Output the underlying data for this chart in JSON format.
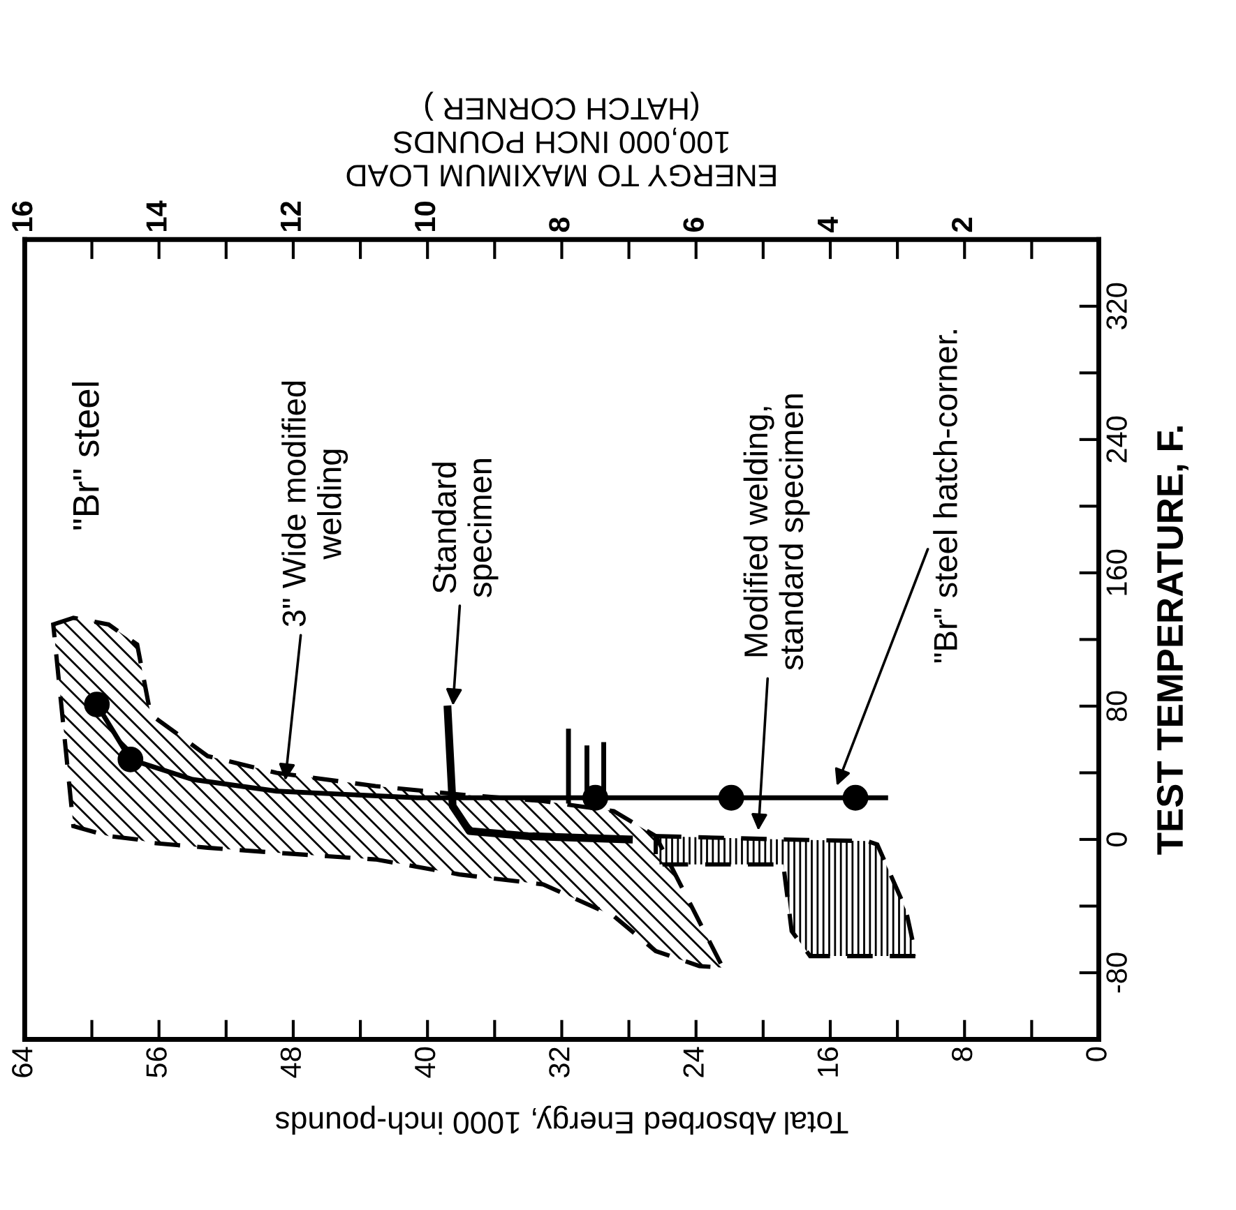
{
  "chart_data": {
    "type": "line",
    "xlabel": "Total Absorbed Energy, 1000 inch-pounds",
    "ylabel": "TEST TEMPERATURE, F.",
    "x2label": "ENERGY TO MAXIMUM LOAD\n100,000 INCH POUNDS\n(HATCH CORNER )",
    "xlim": [
      64,
      0
    ],
    "xticks": [
      64,
      {
        "value": 60,
        "label": null
      },
      56,
      {
        "value": 52,
        "label": null
      },
      48,
      {
        "value": 44,
        "label": null
      },
      40,
      {
        "value": 36,
        "label": null
      },
      32,
      {
        "value": 28,
        "label": null
      },
      24,
      {
        "value": 20,
        "label": null
      },
      16,
      {
        "value": 12,
        "label": null
      },
      8,
      {
        "value": 4,
        "label": null
      },
      0
    ],
    "x2lim": [
      16,
      0
    ],
    "x2ticks": [
      16,
      {
        "value": 15,
        "label": null
      },
      14,
      {
        "value": 13,
        "label": null
      },
      12,
      {
        "value": 11,
        "label": null
      },
      10,
      {
        "value": 9,
        "label": null
      },
      8,
      {
        "value": 7,
        "label": null
      },
      6,
      {
        "value": 5,
        "label": null
      },
      4,
      {
        "value": 3,
        "label": null
      },
      2,
      {
        "value": 1,
        "label": null
      }
    ],
    "ylim": [
      -120,
      360
    ],
    "yticks": [
      -80,
      {
        "value": -40,
        "label": null
      },
      0,
      {
        "value": 40,
        "label": null
      },
      80,
      {
        "value": 120,
        "label": null
      },
      160,
      {
        "value": 200,
        "label": null
      },
      240,
      {
        "value": 280,
        "label": null
      },
      320
    ],
    "grid": false,
    "legend": false,
    "series": [
      {
        "type": "area",
        "color": "#000000",
        "line_style": "dashed",
        "x": [
          62.3,
          61.1,
          59.0,
          57.3,
          56.5,
          53.1,
          49.0,
          43.1,
          38.1,
          33.1,
          28.9,
          26.4,
          22.4,
          23.8,
          26.4,
          28.9,
          33.1,
          38.1,
          43.1,
          49.0,
          53.1,
          56.5,
          57.3,
          59.0,
          61.1
        ],
        "values": [
          129,
          133,
          129,
          117,
          75,
          50,
          40,
          32,
          27,
          23,
          17,
          2,
          -77,
          -76,
          -67,
          -46,
          -27,
          -21,
          -12,
          -8,
          -5,
          -2,
          0,
          2,
          8
        ]
      },
      {
        "type": "area",
        "color": "#000000",
        "line_style": "dashed",
        "x": [
          26.4,
          18.8,
          13.8,
          13.2,
          11.5,
          10.9,
          17.2,
          18.3,
          18.8,
          26.4
        ],
        "values": [
          2,
          0,
          -1,
          -3,
          -42,
          -70,
          -70,
          -55,
          -15,
          -15
        ]
      },
      {
        "color": "#000000",
        "line_style": "solid",
        "x": [
          38.8,
          38.5,
          37.5,
          34.0,
          28.0
        ],
        "values": [
          78,
          20,
          5,
          2,
          0
        ]
      },
      {
        "color": "#000000",
        "line_style": "solid",
        "x": [
          31.6,
          31.6,
          null,
          30.5,
          30.5,
          null,
          29.5,
          29.5
        ],
        "values": [
          23,
          65,
          null,
          23,
          55,
          null,
          23,
          57
        ]
      },
      {
        "color": "#000000",
        "line_style": "solid",
        "x": [
          59.7,
          57.7,
          54.0,
          49.0,
          40.6,
          24.9,
          21.9,
          14.5,
          12.7
        ],
        "values": [
          81,
          48,
          36,
          29,
          25,
          25,
          25,
          25,
          25
        ]
      },
      {
        "type": "scatter",
        "color": "#000000",
        "marker": "circle",
        "x": [
          59.7,
          57.7,
          30.0,
          21.9,
          14.5
        ],
        "values": [
          81,
          48,
          25,
          25,
          25
        ]
      }
    ],
    "annotations": [
      {
        "text": "\"Br\" steel"
      },
      {
        "text": "3\" Wide modified\nwelding",
        "x": 48.5,
        "y": 33
      },
      {
        "text": "Standard\nspecimen",
        "x": 38.5,
        "y": 78
      },
      {
        "text": "Modified welding,\nstandard specimen",
        "x": 20.3,
        "y": 3
      },
      {
        "text": "\"Br\" steel hatch-corner.",
        "x": 15.7,
        "y": 30
      }
    ]
  }
}
